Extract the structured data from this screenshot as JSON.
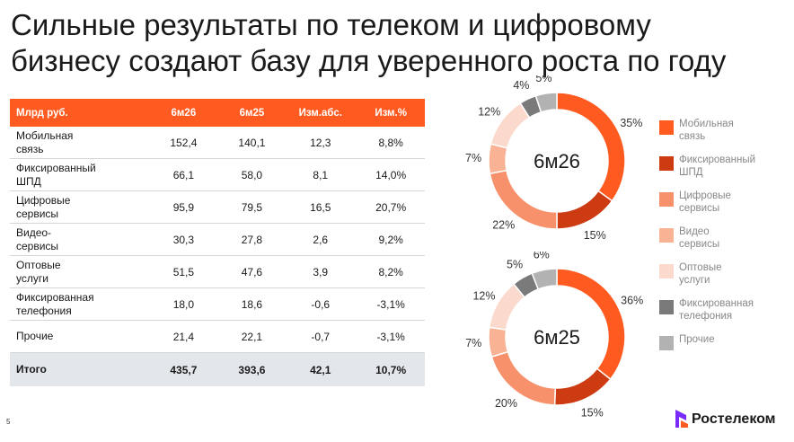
{
  "title": {
    "line1": "Сильные результаты по телеком и цифровому",
    "line2": "бизнесу создают базу для уверенного роста по году"
  },
  "table": {
    "headers": [
      "Млрд руб.",
      "6м26",
      "6м25",
      "Изм.абс.",
      "Изм.%"
    ],
    "rows": [
      {
        "name": [
          "Мобильная",
          "связь"
        ],
        "v1": "152,4",
        "v2": "140,1",
        "abs": "12,3",
        "pct": "8,8%"
      },
      {
        "name": [
          "Фиксированный",
          "ШПД"
        ],
        "v1": "66,1",
        "v2": "58,0",
        "abs": "8,1",
        "pct": "14,0%"
      },
      {
        "name": [
          "Цифровые",
          "сервисы"
        ],
        "v1": "95,9",
        "v2": "79,5",
        "abs": "16,5",
        "pct": "20,7%"
      },
      {
        "name": [
          "Видео-",
          "сервисы"
        ],
        "v1": "30,3",
        "v2": "27,8",
        "abs": "2,6",
        "pct": "9,2%"
      },
      {
        "name": [
          "Оптовые",
          "услуги"
        ],
        "v1": "51,5",
        "v2": "47,6",
        "abs": "3,9",
        "pct": "8,2%"
      },
      {
        "name": [
          "Фиксированная",
          "телефония"
        ],
        "v1": "18,0",
        "v2": "18,6",
        "abs": "-0,6",
        "pct": "-3,1%"
      },
      {
        "name": [
          "Прочие"
        ],
        "v1": "21,4",
        "v2": "22,1",
        "abs": "-0,7",
        "pct": "-3,1%"
      }
    ],
    "total": {
      "name": "Итого",
      "v1": "435,7",
      "v2": "393,6",
      "abs": "42,1",
      "pct": "10,7%"
    }
  },
  "chart_data": [
    {
      "type": "pie",
      "donut": true,
      "center_label": "6м26",
      "categories": [
        "Мобильная связь",
        "Фиксированный ШПД",
        "Цифровые сервисы",
        "Видео сервисы",
        "Оптовые услуги",
        "Фиксированная телефония",
        "Прочие"
      ],
      "values": [
        35,
        15,
        22,
        7,
        12,
        4,
        5
      ],
      "labels": [
        "35%",
        "15%",
        "22%",
        "7%",
        "12%",
        "4%",
        "5%"
      ],
      "colors": [
        "#ff5a1f",
        "#cc3b12",
        "#f7916b",
        "#f9b293",
        "#fbd9cc",
        "#7a7a7a",
        "#b2b2b2"
      ]
    },
    {
      "type": "pie",
      "donut": true,
      "center_label": "6м25",
      "categories": [
        "Мобильная связь",
        "Фиксированный ШПД",
        "Цифровые сервисы",
        "Видео сервисы",
        "Оптовые услуги",
        "Фиксированная телефония",
        "Прочие"
      ],
      "values": [
        36,
        15,
        20,
        7,
        12,
        5,
        6
      ],
      "labels": [
        "36%",
        "15%",
        "20%",
        "7%",
        "12%",
        "5%",
        "6%"
      ],
      "colors": [
        "#ff5a1f",
        "#cc3b12",
        "#f7916b",
        "#f9b293",
        "#fbd9cc",
        "#7a7a7a",
        "#b2b2b2"
      ]
    }
  ],
  "legend": [
    {
      "lines": [
        "Мобильная",
        "связь"
      ],
      "color": "#ff5a1f"
    },
    {
      "lines": [
        "Фиксированный",
        "ШПД"
      ],
      "color": "#cc3b12"
    },
    {
      "lines": [
        "Цифровые",
        "сервисы"
      ],
      "color": "#f7916b"
    },
    {
      "lines": [
        "Видео",
        "сервисы"
      ],
      "color": "#f9b293"
    },
    {
      "lines": [
        "Оптовые",
        "услуги"
      ],
      "color": "#fbd9cc"
    },
    {
      "lines": [
        "Фиксированная",
        "телефония"
      ],
      "color": "#7a7a7a"
    },
    {
      "lines": [
        "Прочие"
      ],
      "color": "#b2b2b2"
    }
  ],
  "page_number": "5",
  "logo": {
    "text": "Ростелеком",
    "icon": "rostelecom-logo-icon",
    "color": "#7b2bf9"
  }
}
